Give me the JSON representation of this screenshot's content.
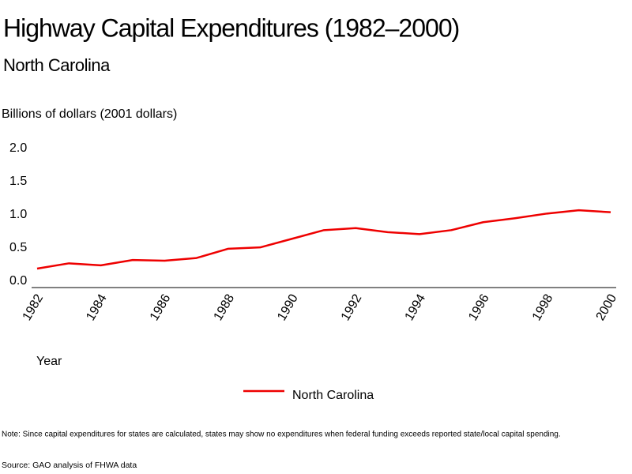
{
  "chart_data": {
    "type": "line",
    "title": "Highway Capital Expenditures (1982–2000)",
    "subtitle": "North Carolina",
    "y_label": "Billions of dollars (2001 dollars)",
    "x_label": "Year",
    "x": [
      1982,
      1983,
      1984,
      1985,
      1986,
      1987,
      1988,
      1989,
      1990,
      1991,
      1992,
      1993,
      1994,
      1995,
      1996,
      1997,
      1998,
      1999,
      2000
    ],
    "series": [
      {
        "name": "North Carolina",
        "color": "#ee0000",
        "values": [
          0.19,
          0.27,
          0.24,
          0.32,
          0.31,
          0.35,
          0.49,
          0.51,
          0.64,
          0.77,
          0.8,
          0.74,
          0.71,
          0.77,
          0.89,
          0.95,
          1.02,
          1.07,
          1.04
        ]
      }
    ],
    "xlim": [
      1982,
      2000
    ],
    "xticks": [
      1982,
      1984,
      1986,
      1988,
      1990,
      1992,
      1994,
      1996,
      1998,
      2000
    ],
    "ylim": [
      0,
      2
    ],
    "yticks": [
      {
        "value": 0,
        "label": "0.0"
      },
      0.5,
      {
        "value": 1,
        "label": "1.0"
      },
      1.5,
      {
        "value": 2,
        "label": "2.0"
      }
    ],
    "grid": false,
    "legend": "bottom",
    "note": "Note: Since capital expenditures for states are calculated, states may show no expenditures when federal funding exceeds reported state/local capital spending.",
    "source": "Source: GAO analysis of FHWA data"
  }
}
